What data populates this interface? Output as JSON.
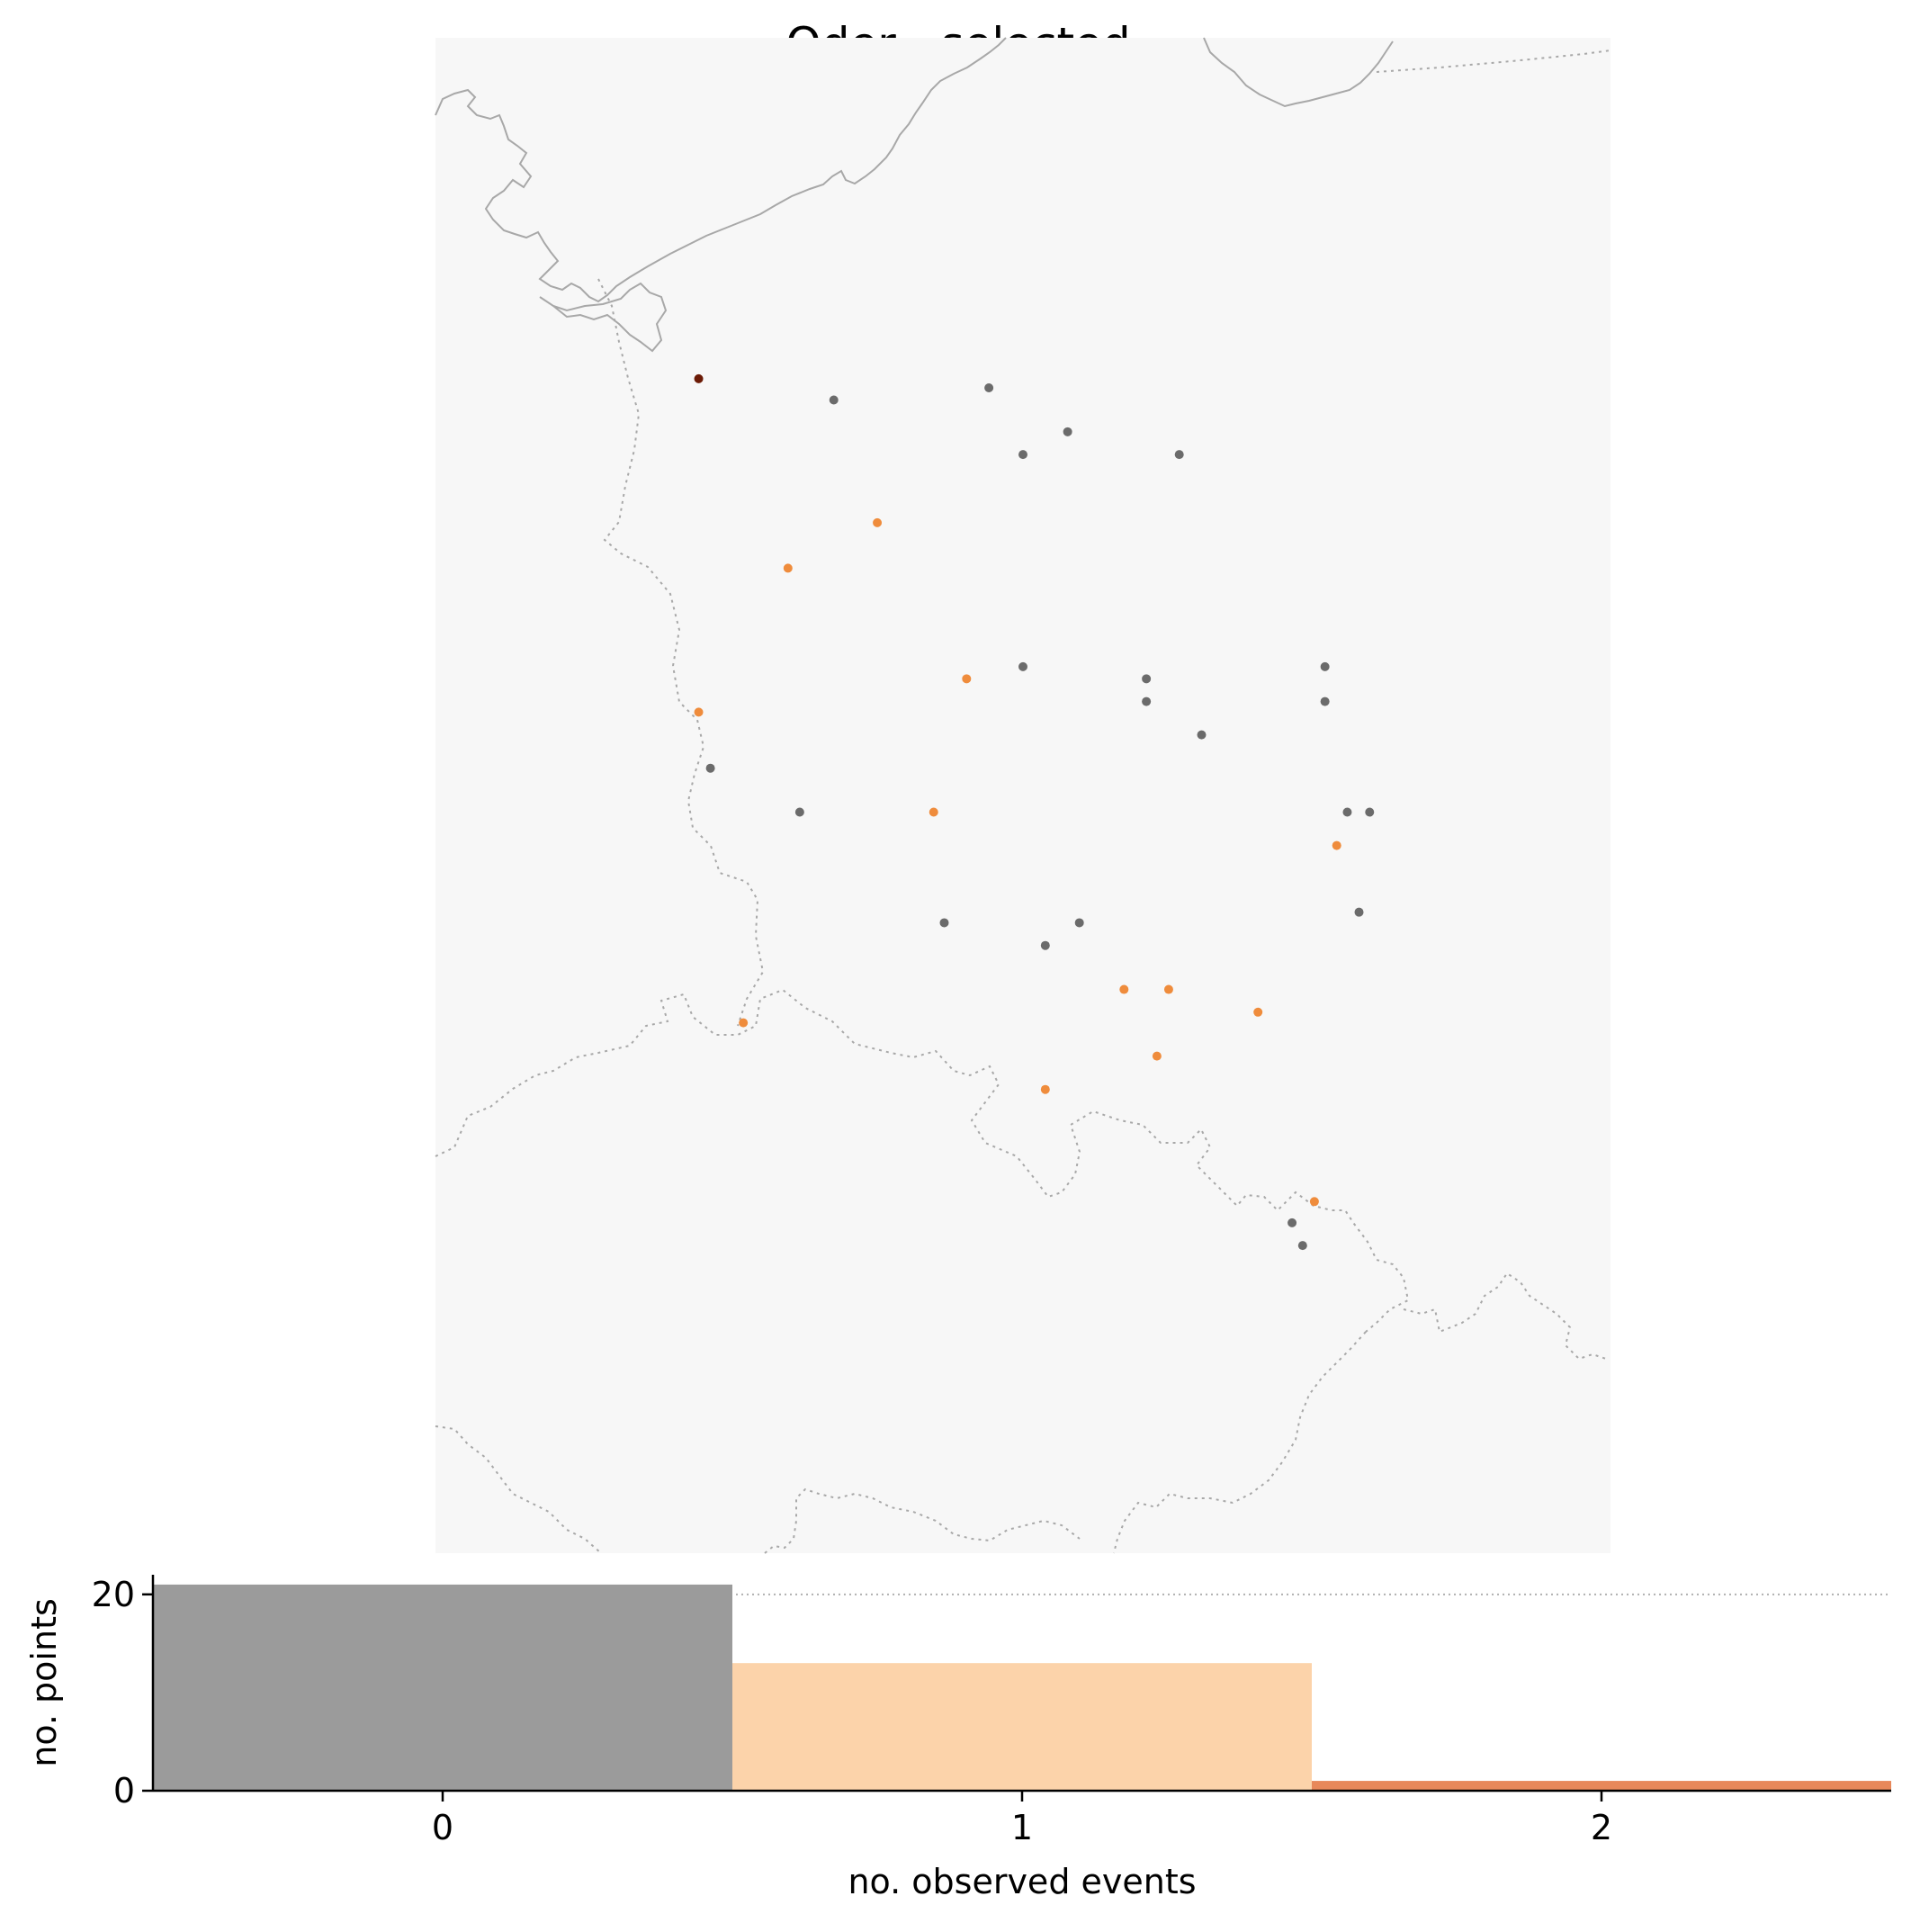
{
  "title": "Oder - selected",
  "colors": {
    "map_background": "#f7f7f7",
    "coastline": "#a8a8a8",
    "border": "#a8a8a8",
    "zero_events": "#6b6b6b",
    "one_event": "#ef8c3c",
    "two_events": "#6b1a06",
    "hist_zero": "#9b9b9b",
    "hist_one": "#fcd3aa",
    "hist_two": "#e8885a",
    "reference_line": "#b0b0b0"
  },
  "legend_levels": [
    {
      "events": 0,
      "color_key": "zero_events"
    },
    {
      "events": 1,
      "color_key": "one_event"
    },
    {
      "events": 2,
      "color_key": "two_events"
    }
  ],
  "stations": [
    {
      "xy": [
        0.224,
        0.225
      ],
      "events": 2
    },
    {
      "xy": [
        0.339,
        0.239
      ],
      "events": 0
    },
    {
      "xy": [
        0.471,
        0.231
      ],
      "events": 0
    },
    {
      "xy": [
        0.538,
        0.26
      ],
      "events": 0
    },
    {
      "xy": [
        0.5,
        0.275
      ],
      "events": 0
    },
    {
      "xy": [
        0.633,
        0.275
      ],
      "events": 0
    },
    {
      "xy": [
        0.376,
        0.32
      ],
      "events": 1
    },
    {
      "xy": [
        0.3,
        0.35
      ],
      "events": 1
    },
    {
      "xy": [
        0.452,
        0.423
      ],
      "events": 1
    },
    {
      "xy": [
        0.5,
        0.415
      ],
      "events": 0
    },
    {
      "xy": [
        0.605,
        0.423
      ],
      "events": 0
    },
    {
      "xy": [
        0.605,
        0.438
      ],
      "events": 0
    },
    {
      "xy": [
        0.757,
        0.415
      ],
      "events": 0
    },
    {
      "xy": [
        0.757,
        0.438
      ],
      "events": 0
    },
    {
      "xy": [
        0.652,
        0.46
      ],
      "events": 0
    },
    {
      "xy": [
        0.224,
        0.445
      ],
      "events": 1
    },
    {
      "xy": [
        0.234,
        0.482
      ],
      "events": 0
    },
    {
      "xy": [
        0.31,
        0.511
      ],
      "events": 0
    },
    {
      "xy": [
        0.424,
        0.511
      ],
      "events": 1
    },
    {
      "xy": [
        0.776,
        0.511
      ],
      "events": 0
    },
    {
      "xy": [
        0.795,
        0.511
      ],
      "events": 0
    },
    {
      "xy": [
        0.767,
        0.533
      ],
      "events": 1
    },
    {
      "xy": [
        0.786,
        0.577
      ],
      "events": 0
    },
    {
      "xy": [
        0.433,
        0.584
      ],
      "events": 0
    },
    {
      "xy": [
        0.548,
        0.584
      ],
      "events": 0
    },
    {
      "xy": [
        0.519,
        0.599
      ],
      "events": 0
    },
    {
      "xy": [
        0.586,
        0.628
      ],
      "events": 1
    },
    {
      "xy": [
        0.624,
        0.628
      ],
      "events": 1
    },
    {
      "xy": [
        0.7,
        0.643
      ],
      "events": 1
    },
    {
      "xy": [
        0.262,
        0.65
      ],
      "events": 1
    },
    {
      "xy": [
        0.614,
        0.672
      ],
      "events": 1
    },
    {
      "xy": [
        0.519,
        0.694
      ],
      "events": 1
    },
    {
      "xy": [
        0.748,
        0.768
      ],
      "events": 1
    },
    {
      "xy": [
        0.729,
        0.782
      ],
      "events": 0
    },
    {
      "xy": [
        0.738,
        0.797
      ],
      "events": 0
    }
  ],
  "chart_data": {
    "type": "bar",
    "title": "",
    "xlabel": "no. observed events",
    "ylabel": "no. points",
    "categories": [
      "0",
      "1",
      "2"
    ],
    "values": [
      21,
      13,
      1
    ],
    "xticks": [
      "0",
      "1",
      "2"
    ],
    "yticks": [
      "0",
      "20"
    ],
    "xlim": [
      -0.5,
      2.5
    ],
    "ylim": [
      0,
      22
    ],
    "reference_line": 20,
    "grid": false,
    "bar_colors": [
      "#9b9b9b",
      "#fcd3aa",
      "#e8885a"
    ]
  }
}
